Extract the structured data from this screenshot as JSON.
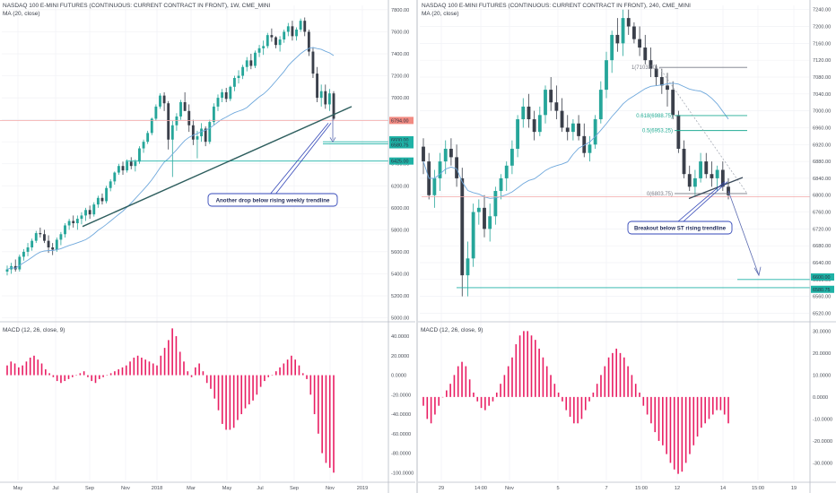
{
  "chart_data": [
    {
      "type": "candlestick",
      "header": "NASDAQ 100 E-MINI FUTURES (CONTINUOUS: CURRENT CONTRACT IN FRONT), 1W, CME_MINI",
      "indicator": "MA (20, close)",
      "y_ticks": [
        "7800.00",
        "7600.00",
        "7400.00",
        "7200.00",
        "7000.00",
        "6800.00",
        "6600.00",
        "6400.00",
        "6200.00",
        "6000.00",
        "5800.00",
        "5600.00",
        "5400.00",
        "5200.00",
        "5000.00"
      ],
      "x_ticks": [
        "May",
        "Jul",
        "Sep",
        "Nov",
        "2018",
        "Mar",
        "May",
        "Jul",
        "Sep",
        "Nov",
        "2019"
      ],
      "ylim": [
        4980,
        7840
      ],
      "candles": [
        [
          5420,
          5475,
          5385,
          5440
        ],
        [
          5440,
          5500,
          5400,
          5470
        ],
        [
          5470,
          5530,
          5420,
          5440
        ],
        [
          5440,
          5575,
          5420,
          5555
        ],
        [
          5555,
          5625,
          5520,
          5600
        ],
        [
          5600,
          5680,
          5560,
          5640
        ],
        [
          5640,
          5720,
          5610,
          5700
        ],
        [
          5700,
          5790,
          5680,
          5770
        ],
        [
          5770,
          5820,
          5730,
          5760
        ],
        [
          5760,
          5800,
          5680,
          5700
        ],
        [
          5700,
          5750,
          5590,
          5640
        ],
        [
          5640,
          5680,
          5570,
          5620
        ],
        [
          5620,
          5730,
          5600,
          5710
        ],
        [
          5710,
          5780,
          5660,
          5760
        ],
        [
          5760,
          5860,
          5730,
          5840
        ],
        [
          5840,
          5900,
          5800,
          5880
        ],
        [
          5880,
          5930,
          5820,
          5860
        ],
        [
          5860,
          5930,
          5800,
          5900
        ],
        [
          5900,
          5960,
          5850,
          5930
        ],
        [
          5930,
          6000,
          5880,
          5980
        ],
        [
          5980,
          6020,
          5900,
          5940
        ],
        [
          5940,
          6050,
          5920,
          6030
        ],
        [
          6030,
          6110,
          6000,
          6090
        ],
        [
          6090,
          6130,
          6030,
          6060
        ],
        [
          6060,
          6200,
          6040,
          6180
        ],
        [
          6180,
          6260,
          6150,
          6240
        ],
        [
          6240,
          6330,
          6210,
          6320
        ],
        [
          6320,
          6400,
          6300,
          6380
        ],
        [
          6380,
          6420,
          6300,
          6340
        ],
        [
          6340,
          6440,
          6320,
          6420
        ],
        [
          6420,
          6460,
          6350,
          6380
        ],
        [
          6380,
          6440,
          6330,
          6420
        ],
        [
          6420,
          6560,
          6400,
          6540
        ],
        [
          6540,
          6620,
          6500,
          6600
        ],
        [
          6600,
          6700,
          6580,
          6680
        ],
        [
          6680,
          6820,
          6660,
          6810
        ],
        [
          6810,
          6940,
          6790,
          6920
        ],
        [
          6920,
          7040,
          6900,
          7020
        ],
        [
          7020,
          7050,
          6880,
          6950
        ],
        [
          6950,
          6970,
          6530,
          6620
        ],
        [
          6620,
          6790,
          6280,
          6750
        ],
        [
          6750,
          6860,
          6700,
          6830
        ],
        [
          6830,
          6980,
          6800,
          6960
        ],
        [
          6960,
          7050,
          6900,
          6880
        ],
        [
          6880,
          6940,
          6690,
          6750
        ],
        [
          6750,
          6800,
          6570,
          6620
        ],
        [
          6620,
          6700,
          6450,
          6650
        ],
        [
          6650,
          6770,
          6600,
          6720
        ],
        [
          6720,
          6740,
          6560,
          6600
        ],
        [
          6600,
          6800,
          6580,
          6780
        ],
        [
          6780,
          6950,
          6750,
          6920
        ],
        [
          6920,
          7030,
          6880,
          7000
        ],
        [
          7000,
          7080,
          6960,
          7050
        ],
        [
          7050,
          7090,
          6960,
          6990
        ],
        [
          6990,
          7110,
          6970,
          7100
        ],
        [
          7100,
          7200,
          7060,
          7180
        ],
        [
          7180,
          7250,
          7130,
          7200
        ],
        [
          7200,
          7300,
          7170,
          7280
        ],
        [
          7280,
          7370,
          7240,
          7340
        ],
        [
          7340,
          7400,
          7260,
          7290
        ],
        [
          7290,
          7430,
          7270,
          7410
        ],
        [
          7410,
          7480,
          7370,
          7450
        ],
        [
          7450,
          7520,
          7390,
          7470
        ],
        [
          7470,
          7590,
          7450,
          7570
        ],
        [
          7570,
          7630,
          7510,
          7550
        ],
        [
          7550,
          7560,
          7450,
          7480
        ],
        [
          7480,
          7560,
          7420,
          7530
        ],
        [
          7530,
          7620,
          7500,
          7600
        ],
        [
          7600,
          7680,
          7560,
          7650
        ],
        [
          7650,
          7700,
          7520,
          7560
        ],
        [
          7560,
          7640,
          7520,
          7620
        ],
        [
          7620,
          7720,
          7600,
          7700
        ],
        [
          7700,
          7730,
          7560,
          7600
        ],
        [
          7600,
          7620,
          7380,
          7420
        ],
        [
          7420,
          7460,
          7180,
          7220
        ],
        [
          7220,
          7280,
          6960,
          7000
        ],
        [
          7000,
          7120,
          6920,
          7060
        ],
        [
          7060,
          7120,
          6900,
          6940
        ],
        [
          6940,
          7080,
          6880,
          7040
        ],
        [
          7040,
          7060,
          6800,
          6810
        ]
      ],
      "ma_line_label": "MA (20, close)",
      "price_labels": [
        {
          "text": "6794.00",
          "color": "#f08080"
        },
        {
          "text": "6600.00",
          "color": "#1fb2a6"
        },
        {
          "text": "6580.75",
          "color": "#1fb2a6"
        },
        {
          "text": "6425.00",
          "color": "#1fb2a6"
        }
      ],
      "annotation": "Another drop below rising weekly trendline",
      "macd_header": "MACD (12, 26, close, 9)",
      "macd_ticks": [
        "40.0000",
        "20.0000",
        "0.0000",
        "-20.0000",
        "-40.0000",
        "-60.0000",
        "-80.0000",
        "-100.0000"
      ],
      "macd_ylim": [
        -108,
        52
      ],
      "macd_hist": [
        10,
        14,
        12,
        8,
        10,
        14,
        18,
        20,
        16,
        12,
        6,
        2,
        -2,
        -6,
        -8,
        -6,
        -4,
        -2,
        0,
        2,
        4,
        -2,
        -6,
        -8,
        -4,
        -2,
        0,
        2,
        4,
        6,
        8,
        10,
        14,
        18,
        20,
        18,
        16,
        14,
        12,
        10,
        20,
        28,
        36,
        48,
        40,
        24,
        14,
        4,
        -2,
        8,
        12,
        4,
        -8,
        -14,
        -24,
        -36,
        -50,
        -56,
        -56,
        -54,
        -46,
        -40,
        -34,
        -30,
        -26,
        -20,
        -12,
        -6,
        -2,
        0,
        4,
        8,
        12,
        16,
        20,
        16,
        10,
        2,
        -4,
        -20,
        -40,
        -60,
        -80,
        -90,
        -95,
        -100
      ]
    },
    {
      "type": "candlestick",
      "header": "NASDAQ 100 E-MINI FUTURES (CONTINUOUS: CURRENT CONTRACT IN FRONT), 240, CME_MINI",
      "indicator": "MA (20, close)",
      "y_ticks": [
        "7240.00",
        "7200.00",
        "7160.00",
        "7120.00",
        "7080.00",
        "7040.00",
        "7000.00",
        "6960.00",
        "6920.00",
        "6880.00",
        "6840.00",
        "6800.00",
        "6760.00",
        "6720.00",
        "6680.00",
        "6640.00",
        "6600.00",
        "6560.00",
        "6520.00"
      ],
      "x_ticks": [
        "29",
        "14:00",
        "Nov",
        "5",
        "7",
        "15:00",
        "12",
        "14",
        "15:00",
        "19"
      ],
      "ylim": [
        6504,
        7250
      ],
      "candles": [
        [
          6915,
          6935,
          6850,
          6880
        ],
        [
          6880,
          6900,
          6790,
          6800
        ],
        [
          6800,
          6860,
          6770,
          6840
        ],
        [
          6840,
          6900,
          6810,
          6880
        ],
        [
          6880,
          6930,
          6850,
          6910
        ],
        [
          6910,
          6935,
          6870,
          6890
        ],
        [
          6890,
          6920,
          6820,
          6840
        ],
        [
          6840,
          6865,
          6560,
          6610
        ],
        [
          6610,
          6690,
          6560,
          6650
        ],
        [
          6650,
          6780,
          6630,
          6760
        ],
        [
          6760,
          6790,
          6730,
          6770
        ],
        [
          6770,
          6800,
          6700,
          6720
        ],
        [
          6720,
          6780,
          6690,
          6750
        ],
        [
          6750,
          6820,
          6730,
          6810
        ],
        [
          6810,
          6850,
          6790,
          6840
        ],
        [
          6840,
          6880,
          6810,
          6870
        ],
        [
          6870,
          6930,
          6850,
          6910
        ],
        [
          6910,
          6990,
          6890,
          6980
        ],
        [
          6980,
          7030,
          6960,
          7010
        ],
        [
          7010,
          7040,
          6960,
          6980
        ],
        [
          6980,
          7000,
          6930,
          6950
        ],
        [
          6950,
          7010,
          6940,
          6990
        ],
        [
          6990,
          7060,
          6970,
          7050
        ],
        [
          7050,
          7080,
          7000,
          7020
        ],
        [
          7020,
          7060,
          6980,
          7000
        ],
        [
          7000,
          7030,
          6950,
          6960
        ],
        [
          6960,
          6990,
          6930,
          6950
        ],
        [
          6950,
          6980,
          6930,
          6970
        ],
        [
          6970,
          6990,
          6930,
          6940
        ],
        [
          6940,
          6970,
          6890,
          6900
        ],
        [
          6900,
          6940,
          6880,
          6920
        ],
        [
          6920,
          6990,
          6910,
          6980
        ],
        [
          6980,
          7070,
          6970,
          7050
        ],
        [
          7050,
          7140,
          7030,
          7120
        ],
        [
          7120,
          7190,
          7090,
          7180
        ],
        [
          7180,
          7220,
          7140,
          7160
        ],
        [
          7160,
          7240,
          7130,
          7220
        ],
        [
          7220,
          7240,
          7180,
          7200
        ],
        [
          7200,
          7210,
          7160,
          7170
        ],
        [
          7170,
          7200,
          7130,
          7150
        ],
        [
          7150,
          7180,
          7110,
          7120
        ],
        [
          7120,
          7150,
          7080,
          7100
        ],
        [
          7100,
          7110,
          7060,
          7080
        ],
        [
          7080,
          7100,
          7040,
          7060
        ],
        [
          7060,
          7090,
          7010,
          7050
        ],
        [
          7050,
          7070,
          6980,
          6990
        ],
        [
          6990,
          7000,
          6900,
          6910
        ],
        [
          6910,
          6930,
          6840,
          6850
        ],
        [
          6850,
          6870,
          6810,
          6820
        ],
        [
          6820,
          6860,
          6800,
          6840
        ],
        [
          6840,
          6900,
          6830,
          6880
        ],
        [
          6880,
          6900,
          6840,
          6850
        ],
        [
          6850,
          6880,
          6820,
          6840
        ],
        [
          6840,
          6870,
          6810,
          6860
        ],
        [
          6860,
          6880,
          6810,
          6820
        ],
        [
          6820,
          6840,
          6790,
          6800
        ]
      ],
      "fib_levels": [
        {
          "text": "1(7103.00)",
          "value": 7103,
          "color": "#787b86"
        },
        {
          "text": "0.618(6988.75)",
          "value": 6988.75,
          "color": "#22ab94"
        },
        {
          "text": "0.5(6953.25)",
          "value": 6953.25,
          "color": "#22ab94"
        },
        {
          "text": "0(6803.75)",
          "value": 6803.75,
          "color": "#787b86"
        }
      ],
      "price_labels": [
        {
          "text": "6600.00",
          "color": "#1fb2a6"
        },
        {
          "text": "6580.75",
          "color": "#1fb2a6"
        }
      ],
      "annotation": "Breakout below ST rising trendline",
      "macd_header": "MACD (12, 26, close, 9)",
      "macd_ticks": [
        "30.0000",
        "20.0000",
        "10.0000",
        "0.0000",
        "-10.0000",
        "-20.0000",
        "-30.0000"
      ],
      "macd_ylim": [
        -38,
        33
      ],
      "macd_hist": [
        -4,
        -10,
        -12,
        -8,
        -4,
        0,
        3,
        6,
        10,
        14,
        16,
        14,
        8,
        2,
        -2,
        -5,
        -6,
        -4,
        -2,
        2,
        6,
        10,
        14,
        18,
        24,
        28,
        30,
        30,
        28,
        26,
        22,
        18,
        14,
        10,
        6,
        2,
        -2,
        -6,
        -9,
        -12,
        -12,
        -10,
        -6,
        -2,
        2,
        6,
        10,
        14,
        18,
        20,
        22,
        20,
        18,
        14,
        10,
        6,
        2,
        -4,
        -8,
        -12,
        -16,
        -20,
        -22,
        -26,
        -30,
        -33,
        -35,
        -34,
        -30,
        -26,
        -22,
        -18,
        -14,
        -12,
        -10,
        -8,
        -6,
        -6,
        -8,
        -12
      ]
    }
  ]
}
